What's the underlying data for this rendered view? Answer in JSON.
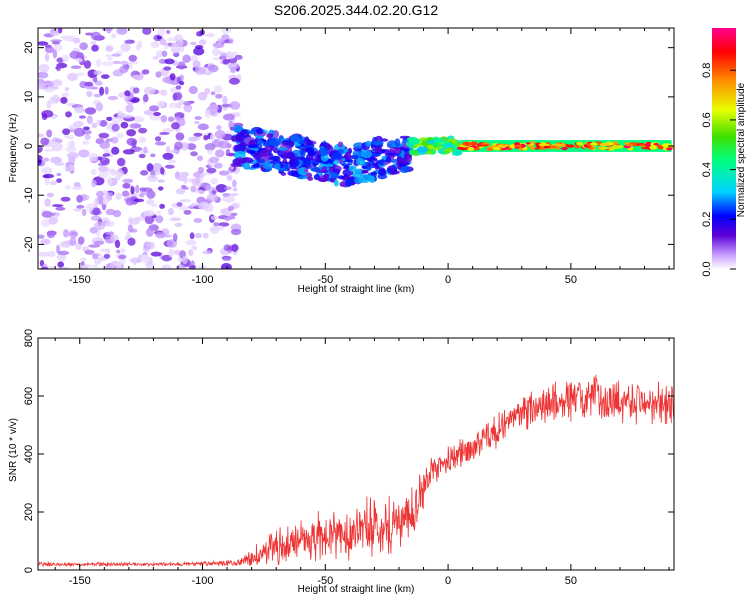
{
  "title": "S206.2025.344.02.20.G12",
  "chart_data": [
    {
      "type": "heatmap",
      "xlabel": "Height of straight line (km)",
      "ylabel": "Frequency (Hz)",
      "xlim": [
        -167,
        92
      ],
      "ylim": [
        -25,
        24
      ],
      "xticks": [
        -150,
        -100,
        -50,
        0,
        50
      ],
      "yticks": [
        -20,
        -10,
        0,
        10,
        20
      ],
      "colorbar": {
        "label": "Normalized spectral amplitude",
        "range": [
          0.0,
          0.97
        ],
        "ticks": [
          0.0,
          0.2,
          0.4,
          0.6,
          0.8
        ],
        "tick_labels": [
          "0.0",
          "0.2",
          "0.4",
          "0.6",
          "0.8"
        ],
        "colors": [
          "#ffffff",
          "#c59aff",
          "#5b00d6",
          "#0000ff",
          "#00d4ff",
          "#00ff80",
          "#40e000",
          "#e8ff00",
          "#ff9000",
          "#ff0000",
          "#ff0090"
        ]
      },
      "regions": [
        {
          "name": "diffuse noise",
          "x": [
            -167,
            -85
          ],
          "freq": [
            -25,
            24
          ],
          "amplitude": [
            0.02,
            0.15
          ]
        },
        {
          "name": "turbulent band",
          "x": [
            -88,
            -15
          ],
          "freq": [
            -11,
            6
          ],
          "amplitude": [
            0.1,
            0.3
          ]
        },
        {
          "name": "transition band",
          "x": [
            -15,
            5
          ],
          "freq": [
            -2,
            2
          ],
          "amplitude": [
            0.3,
            0.6
          ]
        },
        {
          "name": "carrier line",
          "x": [
            5,
            91
          ],
          "freq": [
            -1,
            1
          ],
          "amplitude": [
            0.6,
            0.95
          ]
        }
      ]
    },
    {
      "type": "line",
      "xlabel": "Height of straight line (km)",
      "ylabel": "SNR (10 * v/v)",
      "xlim": [
        -167,
        92
      ],
      "ylim": [
        0,
        800
      ],
      "xticks": [
        -150,
        -100,
        -50,
        0,
        50
      ],
      "yticks": [
        0,
        200,
        400,
        600,
        800
      ],
      "series": [
        {
          "name": "SNR",
          "color": "#ee3333",
          "x": [
            -167,
            -150,
            -130,
            -110,
            -95,
            -85,
            -80,
            -75,
            -70,
            -60,
            -50,
            -40,
            -30,
            -20,
            -15,
            -12,
            -8,
            -5,
            0,
            5,
            10,
            15,
            20,
            25,
            30,
            35,
            40,
            45,
            50,
            55,
            60,
            65,
            70,
            75,
            80,
            85,
            91
          ],
          "values": [
            20,
            20,
            20,
            20,
            22,
            25,
            40,
            60,
            80,
            100,
            120,
            130,
            150,
            170,
            190,
            250,
            310,
            350,
            380,
            400,
            420,
            450,
            480,
            520,
            540,
            560,
            570,
            580,
            585,
            590,
            595,
            590,
            585,
            590,
            580,
            570,
            560
          ],
          "spread": [
            8,
            8,
            8,
            8,
            10,
            14,
            40,
            60,
            80,
            90,
            100,
            110,
            120,
            140,
            100,
            90,
            80,
            60,
            60,
            60,
            60,
            70,
            70,
            70,
            80,
            80,
            90,
            90,
            90,
            90,
            90,
            90,
            90,
            90,
            90,
            90,
            90
          ]
        }
      ]
    }
  ]
}
